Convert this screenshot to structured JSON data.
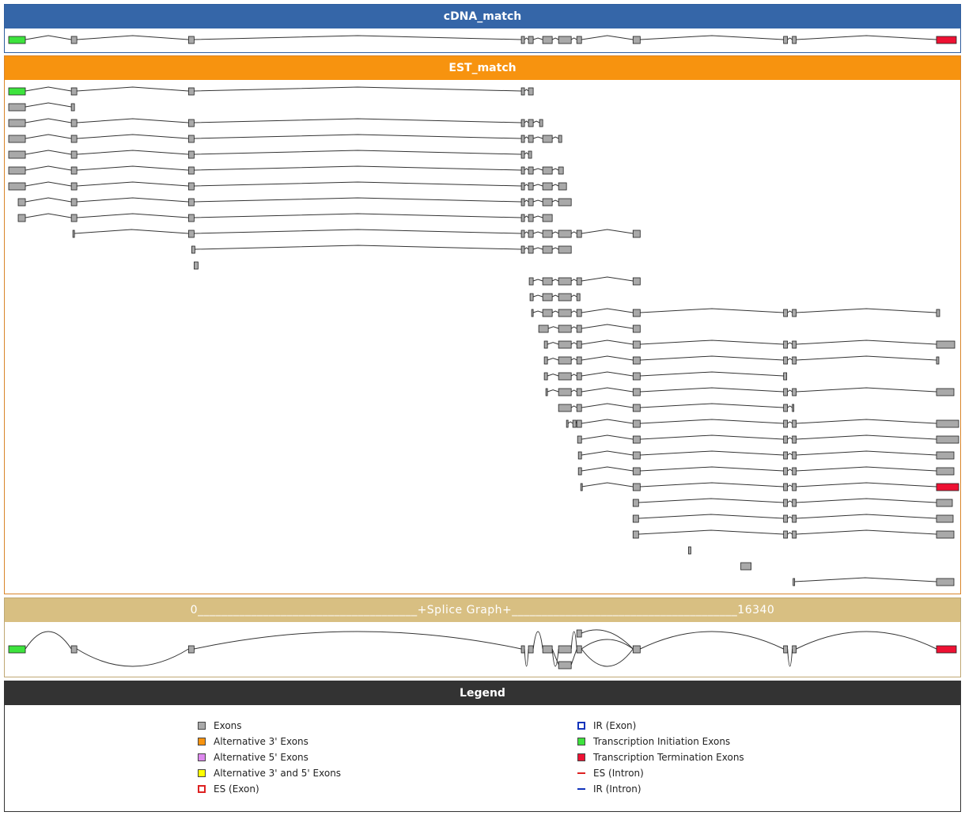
{
  "panels": {
    "cdna": {
      "title": "cDNA_match"
    },
    "est": {
      "title": "EST_match"
    },
    "splice_graph": {
      "title": "0_____________________________________+Splice Graph+______________________________________16340",
      "start": "0",
      "end": "16340"
    },
    "legend": {
      "title": "Legend"
    }
  },
  "colors": {
    "exon": "#a9a9a9",
    "initiation": "#3de33d",
    "termination": "#ee1133",
    "alt3": "#f7930f",
    "alt5": "#dd88ee",
    "alt35": "#ffff00",
    "ir_exon": "#1133bb",
    "es_exon": "#dd2222",
    "es_intron": "#dd2222",
    "ir_intron": "#1133bb"
  },
  "legend": {
    "left": [
      {
        "label": "Exons",
        "kind": "box",
        "color": "exon"
      },
      {
        "label": "Alternative 3' Exons",
        "kind": "box",
        "color": "alt3"
      },
      {
        "label": "Alternative 5' Exons",
        "kind": "box",
        "color": "alt5"
      },
      {
        "label": "Alternative 3' and 5' Exons",
        "kind": "box",
        "color": "alt35"
      },
      {
        "label": "ES (Exon)",
        "kind": "dashed-box",
        "color": "es_exon"
      }
    ],
    "right": [
      {
        "label": "IR (Exon)",
        "kind": "outline-box",
        "color": "ir_exon"
      },
      {
        "label": "Transcription Initiation Exons",
        "kind": "box",
        "color": "initiation"
      },
      {
        "label": "Transcription Termination Exons",
        "kind": "box",
        "color": "termination"
      },
      {
        "label": "ES (Intron)",
        "kind": "dashed-line",
        "color": "es_intron"
      },
      {
        "label": "IR (Intron)",
        "kind": "line",
        "color": "ir_intron"
      }
    ]
  },
  "exon_catalog": {
    "A": {
      "s": 0,
      "e": 210,
      "kind": "initiation"
    },
    "B": {
      "s": 790,
      "e": 860
    },
    "C": {
      "s": 2270,
      "e": 2340
    },
    "D1": {
      "s": 6470,
      "e": 6510
    },
    "D2": {
      "s": 6560,
      "e": 6620
    },
    "D3": {
      "s": 6740,
      "e": 6860
    },
    "D4": {
      "s": 6940,
      "e": 7100
    },
    "D5": {
      "s": 7170,
      "e": 7230
    },
    "E": {
      "s": 7880,
      "e": 7970
    },
    "F1": {
      "s": 9780,
      "e": 9830
    },
    "F2": {
      "s": 9890,
      "e": 9940
    },
    "G": {
      "s": 11710,
      "e": 11960,
      "kind": "termination"
    }
  },
  "splice_graph": {
    "exons": [
      {
        "s": 0,
        "e": 210,
        "kind": "initiation"
      },
      {
        "s": 790,
        "e": 860
      },
      {
        "s": 2270,
        "e": 2340
      },
      {
        "s": 6470,
        "e": 6510
      },
      {
        "s": 6560,
        "e": 6620
      },
      {
        "s": 6740,
        "e": 6860
      },
      {
        "s": 6940,
        "e": 7100
      },
      {
        "s": 7170,
        "e": 7230
      },
      {
        "s": 7170,
        "e": 7230,
        "level": "upper"
      },
      {
        "s": 6940,
        "e": 7100,
        "level": "lower"
      },
      {
        "s": 7880,
        "e": 7970
      },
      {
        "s": 9780,
        "e": 9830
      },
      {
        "s": 9890,
        "e": 9940
      },
      {
        "s": 11710,
        "e": 11960,
        "kind": "termination"
      }
    ]
  },
  "transcripts": {
    "cdna": [
      {
        "exons": [
          [
            0,
            210,
            "initiation"
          ],
          [
            790,
            860
          ],
          [
            2270,
            2340
          ],
          [
            6470,
            6510
          ],
          [
            6560,
            6620
          ],
          [
            6740,
            6860
          ],
          [
            6940,
            7100
          ],
          [
            7170,
            7230
          ],
          [
            7880,
            7970
          ],
          [
            9780,
            9830
          ],
          [
            9890,
            9940
          ],
          [
            11710,
            11960,
            "termination"
          ]
        ]
      }
    ],
    "est": [
      {
        "exons": [
          [
            0,
            210,
            "initiation"
          ],
          [
            790,
            860
          ],
          [
            2270,
            2340
          ],
          [
            6470,
            6510
          ],
          [
            6560,
            6620
          ]
        ]
      },
      {
        "exons": [
          [
            0,
            210
          ],
          [
            790,
            830
          ]
        ]
      },
      {
        "exons": [
          [
            0,
            210
          ],
          [
            790,
            860
          ],
          [
            2270,
            2340
          ],
          [
            6470,
            6510
          ],
          [
            6560,
            6620
          ],
          [
            6700,
            6740
          ]
        ]
      },
      {
        "exons": [
          [
            0,
            210
          ],
          [
            790,
            860
          ],
          [
            2270,
            2340
          ],
          [
            6470,
            6510
          ],
          [
            6560,
            6620
          ],
          [
            6740,
            6860
          ],
          [
            6940,
            6980
          ]
        ]
      },
      {
        "exons": [
          [
            0,
            210
          ],
          [
            790,
            860
          ],
          [
            2270,
            2340
          ],
          [
            6470,
            6510
          ],
          [
            6560,
            6600
          ]
        ]
      },
      {
        "exons": [
          [
            0,
            210
          ],
          [
            790,
            860
          ],
          [
            2270,
            2340
          ],
          [
            6470,
            6510
          ],
          [
            6560,
            6620
          ],
          [
            6740,
            6860
          ],
          [
            6940,
            7000
          ]
        ]
      },
      {
        "exons": [
          [
            0,
            210
          ],
          [
            790,
            860
          ],
          [
            2270,
            2340
          ],
          [
            6470,
            6510
          ],
          [
            6560,
            6620
          ],
          [
            6740,
            6860
          ],
          [
            6940,
            7040
          ]
        ]
      },
      {
        "exons": [
          [
            120,
            210
          ],
          [
            790,
            860
          ],
          [
            2270,
            2340
          ],
          [
            6470,
            6510
          ],
          [
            6560,
            6620
          ],
          [
            6740,
            6860
          ],
          [
            6940,
            7100
          ]
        ]
      },
      {
        "exons": [
          [
            120,
            210
          ],
          [
            790,
            860
          ],
          [
            2270,
            2340
          ],
          [
            6470,
            6510
          ],
          [
            6560,
            6620
          ],
          [
            6740,
            6860
          ]
        ]
      },
      {
        "exons": [
          [
            810,
            830
          ],
          [
            2270,
            2340
          ],
          [
            6470,
            6510
          ],
          [
            6560,
            6620
          ],
          [
            6740,
            6860
          ],
          [
            6940,
            7100
          ],
          [
            7170,
            7230
          ],
          [
            7880,
            7970
          ]
        ]
      },
      {
        "exons": [
          [
            2310,
            2350
          ],
          [
            6470,
            6510
          ],
          [
            6560,
            6620
          ],
          [
            6740,
            6860
          ],
          [
            6940,
            7100
          ]
        ]
      },
      {
        "exons": [
          [
            2340,
            2390
          ]
        ]
      },
      {
        "exons": [
          [
            6570,
            6620
          ],
          [
            6740,
            6860
          ],
          [
            6940,
            7100
          ],
          [
            7170,
            7230
          ],
          [
            7880,
            7970
          ]
        ]
      },
      {
        "exons": [
          [
            6580,
            6620
          ],
          [
            6740,
            6860
          ],
          [
            6940,
            7100
          ],
          [
            7170,
            7210
          ]
        ]
      },
      {
        "exons": [
          [
            6600,
            6620
          ],
          [
            6740,
            6860
          ],
          [
            6940,
            7100
          ],
          [
            7170,
            7230
          ],
          [
            7880,
            7970
          ],
          [
            9780,
            9830
          ],
          [
            9890,
            9940
          ],
          [
            11710,
            11750
          ]
        ]
      },
      {
        "exons": [
          [
            6690,
            6810
          ],
          [
            6940,
            7100
          ],
          [
            7170,
            7230
          ],
          [
            7880,
            7970
          ]
        ]
      },
      {
        "exons": [
          [
            6760,
            6800
          ],
          [
            6940,
            7100
          ],
          [
            7170,
            7230
          ],
          [
            7880,
            7970
          ],
          [
            9780,
            9830
          ],
          [
            9890,
            9940
          ],
          [
            11710,
            11940
          ]
        ]
      },
      {
        "exons": [
          [
            6760,
            6800
          ],
          [
            6940,
            7100
          ],
          [
            7170,
            7230
          ],
          [
            7880,
            7970
          ],
          [
            9780,
            9830
          ],
          [
            9890,
            9940
          ],
          [
            11710,
            11740
          ]
        ]
      },
      {
        "exons": [
          [
            6760,
            6800
          ],
          [
            6940,
            7100
          ],
          [
            7170,
            7230
          ],
          [
            7880,
            7970
          ],
          [
            9780,
            9820
          ]
        ]
      },
      {
        "exons": [
          [
            6780,
            6800
          ],
          [
            6940,
            7100
          ],
          [
            7170,
            7230
          ],
          [
            7880,
            7970
          ],
          [
            9780,
            9830
          ],
          [
            9890,
            9940
          ],
          [
            11710,
            11930
          ]
        ]
      },
      {
        "exons": [
          [
            6940,
            7100
          ],
          [
            7170,
            7230
          ],
          [
            7880,
            7970
          ],
          [
            9780,
            9830
          ],
          [
            9890,
            9910
          ]
        ]
      },
      {
        "exons": [
          [
            7040,
            7060
          ],
          [
            7120,
            7160
          ],
          [
            7170,
            7230
          ],
          [
            7880,
            7970
          ],
          [
            9780,
            9830
          ],
          [
            9890,
            9940
          ],
          [
            11710,
            11990
          ]
        ]
      },
      {
        "exons": [
          [
            7180,
            7230
          ],
          [
            7880,
            7970
          ],
          [
            9780,
            9830
          ],
          [
            9890,
            9940
          ],
          [
            11710,
            11990
          ]
        ]
      },
      {
        "exons": [
          [
            7190,
            7230
          ],
          [
            7880,
            7970
          ],
          [
            9780,
            9830
          ],
          [
            9890,
            9940
          ],
          [
            11710,
            11930
          ]
        ]
      },
      {
        "exons": [
          [
            7190,
            7230
          ],
          [
            7880,
            7970
          ],
          [
            9780,
            9830
          ],
          [
            9890,
            9940
          ],
          [
            11710,
            11930
          ]
        ]
      },
      {
        "exons": [
          [
            7220,
            7230
          ],
          [
            7880,
            7970
          ],
          [
            9780,
            9830
          ],
          [
            9890,
            9940
          ],
          [
            11710,
            11990,
            "termination"
          ]
        ]
      },
      {
        "exons": [
          [
            7880,
            7950
          ],
          [
            9780,
            9830
          ],
          [
            9890,
            9940
          ],
          [
            11710,
            11910
          ]
        ]
      },
      {
        "exons": [
          [
            7880,
            7950
          ],
          [
            9780,
            9830
          ],
          [
            9890,
            9940
          ],
          [
            11710,
            11920
          ]
        ]
      },
      {
        "exons": [
          [
            7880,
            7950
          ],
          [
            9780,
            9830
          ],
          [
            9890,
            9940
          ],
          [
            11710,
            11930
          ]
        ]
      },
      {
        "exons": [
          [
            8580,
            8610
          ]
        ]
      },
      {
        "exons": [
          [
            9240,
            9370
          ]
        ]
      },
      {
        "exons": [
          [
            9900,
            9910
          ],
          [
            11710,
            11930
          ]
        ]
      }
    ]
  }
}
